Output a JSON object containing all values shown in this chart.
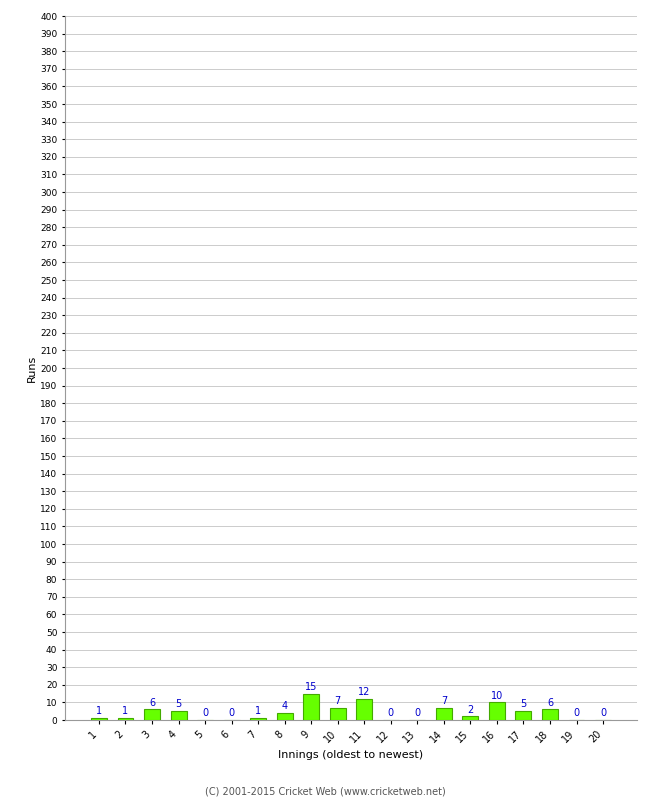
{
  "xlabel": "Innings (oldest to newest)",
  "ylabel": "Runs",
  "footer": "(C) 2001-2015 Cricket Web (www.cricketweb.net)",
  "categories": [
    "1",
    "2",
    "3",
    "4",
    "5",
    "6",
    "7",
    "8",
    "9",
    "10",
    "11",
    "12",
    "13",
    "14",
    "15",
    "16",
    "17",
    "18",
    "19",
    "20"
  ],
  "values": [
    1,
    1,
    6,
    5,
    0,
    0,
    1,
    4,
    15,
    7,
    12,
    0,
    0,
    7,
    2,
    10,
    5,
    6,
    0,
    0
  ],
  "bar_color": "#66ff00",
  "bar_edge_color": "#44aa00",
  "label_color": "#0000cc",
  "ylim": [
    0,
    400
  ],
  "background_color": "#ffffff",
  "grid_color": "#cccccc",
  "footer_color": "#555555"
}
